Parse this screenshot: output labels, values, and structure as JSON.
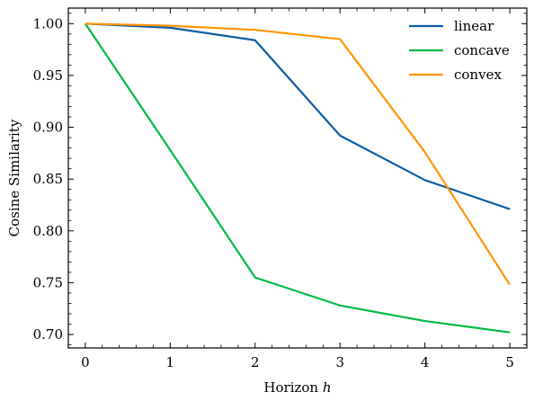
{
  "chart_data": {
    "type": "line",
    "title": "",
    "xlabel": "Horizon",
    "xlabel_var": "h",
    "ylabel": "Cosine Similarity",
    "x": [
      0,
      1,
      2,
      3,
      4,
      5
    ],
    "xlim": [
      -0.2,
      5.2
    ],
    "ylim": [
      0.687,
      1.015
    ],
    "xticks": [
      0,
      1,
      2,
      3,
      4,
      5
    ],
    "yticks": [
      0.7,
      0.75,
      0.8,
      0.85,
      0.9,
      0.95,
      1.0
    ],
    "ytick_labels": [
      "0.70",
      "0.75",
      "0.80",
      "0.85",
      "0.90",
      "0.95",
      "1.00"
    ],
    "grid": false,
    "legend_position": "top-right",
    "series": [
      {
        "name": "linear",
        "color": "#0C5DA5",
        "values": [
          1.0,
          0.996,
          0.984,
          0.892,
          0.849,
          0.821
        ]
      },
      {
        "name": "concave",
        "color": "#00B945",
        "values": [
          1.0,
          0.878,
          0.755,
          0.728,
          0.713,
          0.702
        ]
      },
      {
        "name": "convex",
        "color": "#FF9500",
        "values": [
          1.0,
          0.998,
          0.994,
          0.985,
          0.876,
          0.748
        ]
      }
    ]
  }
}
